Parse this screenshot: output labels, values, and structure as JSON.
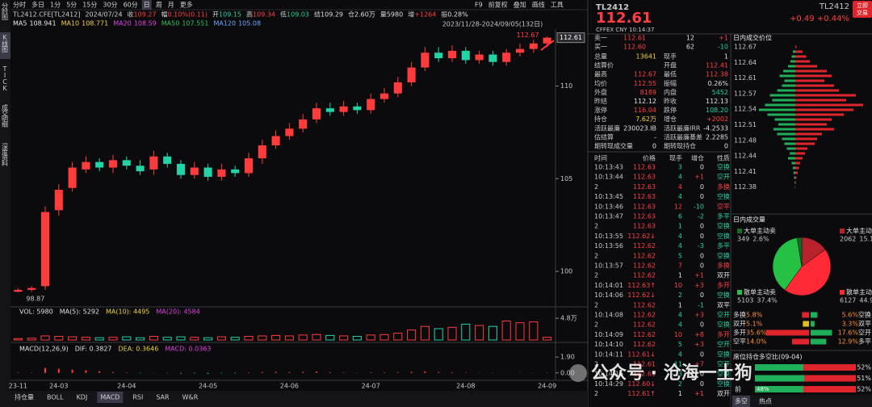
{
  "toolbar": {
    "tabs": [
      "分时",
      "多日",
      "1分",
      "5分",
      "15分",
      "30分",
      "60分",
      "日",
      "周",
      "月",
      "更多"
    ],
    "active": 7,
    "right": [
      "F9",
      "前复权",
      "叠加",
      "画线",
      "工具"
    ]
  },
  "side_tabs": {
    "items": [
      "分时图",
      "K线图",
      "TICK",
      "成交明细",
      "深度资料"
    ],
    "active": 1
  },
  "quote_line": [
    {
      "text": "TL2412.CFE[TL2412]",
      "color": "#d0d0d0"
    },
    {
      "text": "2024/07/24",
      "color": "#d0d0d0"
    },
    {
      "text": "收",
      "value": "109.27",
      "color": "#ff4040"
    },
    {
      "text": "幅",
      "value": "0.10%(0.11)",
      "color": "#ff4040"
    },
    {
      "text": "开",
      "value": "109.15",
      "color": "#23d3a5"
    },
    {
      "text": "高",
      "value": "109.34",
      "color": "#ff4040"
    },
    {
      "text": "低",
      "value": "109.03",
      "color": "#23d3a5"
    },
    {
      "text": "结",
      "value": "109.29",
      "color": "#e0e0e0"
    },
    {
      "text": "仓",
      "value": "2.60万",
      "color": "#e0e0e0"
    },
    {
      "text": "量",
      "value": "5980",
      "color": "#e0e0e0"
    },
    {
      "text": "增",
      "value": "+1264",
      "color": "#ff4040"
    },
    {
      "text": "振",
      "value": "0.28%",
      "color": "#e0e0e0"
    }
  ],
  "ma_line": [
    {
      "text": "MA5",
      "value": "108.941",
      "color": "#e8e8e8"
    },
    {
      "text": "MA10",
      "value": "108.771",
      "color": "#f0d040"
    },
    {
      "text": "MA20",
      "value": "108.59",
      "color": "#e040e0"
    },
    {
      "text": "MA50",
      "value": "107.551",
      "color": "#30c060"
    },
    {
      "text": "MA120",
      "value": "105.08",
      "color": "#6aa8ff"
    }
  ],
  "chart_data": {
    "type": "candlestick",
    "date_range": "2023/11/28-2024/09/05(132日)",
    "categories": [
      "23-11",
      null,
      null,
      "24-03",
      null,
      null,
      null,
      null,
      "24-04",
      null,
      null,
      null,
      null,
      null,
      "24-05",
      null,
      null,
      null,
      null,
      null,
      "24-06",
      null,
      null,
      null,
      null,
      null,
      "24-07",
      null,
      null,
      null,
      null,
      null,
      null,
      "24-08",
      null,
      null,
      null,
      null,
      null,
      "24-09"
    ],
    "open": [
      98.9,
      99.0,
      99.2,
      103.3,
      104.5,
      105.5,
      105.9,
      105.6,
      106.0,
      105.7,
      105.5,
      106.2,
      105.8,
      105.2,
      105.6,
      105.1,
      105.5,
      105.3,
      106.1,
      106.8,
      107.3,
      107.7,
      108.2,
      108.8,
      108.6,
      108.9,
      108.7,
      109.3,
      109.6,
      110.2,
      111.0,
      111.8,
      111.5,
      111.9,
      111.4,
      111.7,
      111.3,
      111.8,
      112.0,
      112.3
    ],
    "close": [
      99.0,
      99.1,
      103.2,
      104.4,
      105.6,
      105.9,
      105.6,
      106.0,
      105.7,
      105.4,
      106.2,
      105.8,
      105.2,
      105.6,
      105.1,
      105.5,
      105.3,
      106.1,
      106.8,
      107.3,
      107.7,
      108.2,
      108.8,
      108.6,
      108.9,
      108.7,
      109.3,
      109.6,
      110.2,
      111.0,
      111.8,
      111.5,
      111.9,
      111.4,
      111.7,
      111.3,
      111.8,
      112.0,
      112.3,
      112.61
    ],
    "high": [
      99.1,
      99.2,
      103.5,
      104.7,
      105.9,
      106.2,
      106.1,
      106.3,
      106.2,
      106.0,
      106.5,
      106.4,
      106.0,
      105.9,
      105.8,
      105.8,
      105.7,
      106.4,
      107.1,
      107.6,
      108.0,
      108.5,
      109.1,
      109.1,
      109.2,
      109.1,
      109.6,
      109.9,
      110.5,
      111.3,
      112.1,
      112.1,
      112.2,
      112.1,
      111.9,
      111.9,
      112.0,
      112.3,
      112.5,
      112.67
    ],
    "low": [
      98.87,
      98.9,
      99.0,
      103.0,
      104.3,
      105.3,
      105.4,
      105.3,
      105.5,
      105.2,
      105.2,
      105.6,
      105.0,
      105.0,
      104.9,
      104.9,
      105.1,
      105.1,
      105.8,
      106.6,
      107.1,
      107.5,
      108.0,
      108.4,
      108.4,
      108.5,
      108.5,
      109.1,
      109.4,
      110.0,
      110.8,
      111.3,
      111.3,
      111.2,
      111.2,
      111.1,
      111.1,
      111.6,
      111.8,
      112.1
    ],
    "up_color": "#ff3b3b",
    "down_color": "#23d3a5",
    "ylim": [
      98.3,
      112.9
    ],
    "yticks": [
      100,
      105,
      110
    ]
  },
  "volume": {
    "header": [
      {
        "text": "VOL: 5980",
        "color": "#e0e0e0"
      },
      {
        "text": "MA(5): 5292",
        "color": "#e0e0e0"
      },
      {
        "text": "MA(10): 4495",
        "color": "#f0d040"
      },
      {
        "text": "MA(20): 4584",
        "color": "#e040e0"
      }
    ],
    "values": [
      3000,
      4000,
      9000,
      8000,
      7000,
      6000,
      5000,
      6000,
      7000,
      5000,
      8000,
      6000,
      7000,
      6000,
      5000,
      7000,
      6000,
      8000,
      9000,
      10000,
      9000,
      11000,
      12000,
      10000,
      9000,
      8000,
      11000,
      12000,
      15000,
      22000,
      30000,
      25000,
      28000,
      35000,
      32000,
      30000,
      42000,
      38000,
      40000,
      5980
    ],
    "ylim": [
      0,
      50000
    ],
    "yticks": [
      {
        "value": 48000,
        "label": "4.8万"
      }
    ]
  },
  "macd": {
    "header": [
      {
        "text": "MACD(12,26,9)",
        "color": "#e0e0e0"
      },
      {
        "text": "DIF: 0.3827",
        "color": "#e0e0e0"
      },
      {
        "text": "DEA: 0.3646",
        "color": "#f0d040"
      },
      {
        "text": "MACD: 0.0363",
        "color": "#e040e0"
      }
    ],
    "values": [
      0.05,
      0.04,
      0.6,
      0.5,
      0.4,
      0.3,
      0.2,
      0.1,
      0.05,
      -0.05,
      0.02,
      -0.03,
      -0.08,
      -0.06,
      -0.1,
      -0.05,
      -0.06,
      0.05,
      0.1,
      0.12,
      0.1,
      0.12,
      0.15,
      0.08,
      0.05,
      0.02,
      0.06,
      0.05,
      0.08,
      0.12,
      0.18,
      0.1,
      0.08,
      0.05,
      0.03,
      -0.02,
      0.01,
      0.03,
      0.02,
      0.0363
    ],
    "ylim": [
      -0.8,
      2.4
    ],
    "yticks": [
      {
        "value": 1.9,
        "label": "1.90"
      },
      {
        "value": 0,
        "label": "0.00"
      }
    ]
  },
  "bottom_tabs": {
    "items": [
      "持仓量",
      "BOLL",
      "KDJ",
      "MACD",
      "RSI",
      "SAR",
      "W&R"
    ],
    "active": 3
  },
  "quote": {
    "code": "TL2412",
    "price": "112.61",
    "exchange": "CFFEX CNY 10:14:37",
    "code_right": "TL2412",
    "change": "+0.49 +0.44%",
    "button": [
      "立即",
      "交易"
    ]
  },
  "order_book": [
    [
      "卖一",
      "112.61",
      "12",
      "+1"
    ],
    [
      "买一",
      "112.60",
      "62",
      "-10"
    ]
  ],
  "stats": [
    [
      {
        "label": "总量",
        "value": "13641",
        "color": "#f0d040"
      },
      {
        "label": "现手",
        "value": "1",
        "color": "#e0e0e0"
      }
    ],
    [
      {
        "label": "结算价"
      },
      {
        "label": "开盘",
        "value": "112.41",
        "color": "#ff4040"
      }
    ],
    [
      {
        "label": "最高",
        "value": "112.67",
        "color": "#ff4040"
      },
      {
        "label": "最低",
        "value": "112.38",
        "color": "#ff4040"
      }
    ],
    [
      {
        "label": "均价",
        "value": "112.55",
        "color": "#ff4040"
      },
      {
        "label": "振幅",
        "value": "0.26%",
        "color": "#e0e0e0"
      }
    ],
    [
      {
        "label": "外盘",
        "value": "8189",
        "color": "#ff4040"
      },
      {
        "label": "内盘",
        "value": "5452",
        "color": "#23d3a5"
      }
    ],
    [
      {
        "label": "昨结",
        "value": "112.12",
        "color": "#e0e0e0"
      },
      {
        "label": "昨收",
        "value": "112.13",
        "color": "#e0e0e0"
      }
    ],
    [
      {
        "label": "涨停",
        "value": "116.04",
        "color": "#ff4040"
      },
      {
        "label": "跌停",
        "value": "108.20",
        "color": "#23d3a5"
      }
    ],
    [
      {
        "label": "持仓",
        "value": "7.62万",
        "color": "#f0d040"
      },
      {
        "label": "增仓",
        "value": "+2002",
        "color": "#ff4040"
      }
    ],
    [
      {
        "label": "活跃最廉",
        "value": "230023.IB",
        "color": "#e0e0e0"
      },
      {
        "label": "活跃最廉IRR",
        "value": "-4.2533",
        "color": "#e0e0e0"
      }
    ],
    [
      {
        "label": "估结算",
        "value": "-",
        "color": "#e0e0e0"
      },
      {
        "label": "活跃最廉基差",
        "value": "2.2285",
        "color": "#e0e0e0"
      }
    ],
    [
      {
        "label": "期转现成交量",
        "value": "0",
        "color": "#e0e0e0"
      },
      {
        "label": "期转现持仓",
        "value": "0",
        "color": "#e0e0e0"
      }
    ]
  ],
  "trades": {
    "header": [
      "时间",
      "价格",
      "现手",
      "增仓",
      "性质"
    ],
    "rows": [
      [
        "10:13:43",
        "112.63",
        "3",
        "0",
        "空换",
        "#23d3a5"
      ],
      [
        "10:13:44",
        "112.63",
        "4",
        "+1",
        "空开",
        "#23d3a5"
      ],
      [
        "2",
        "112.63",
        "4",
        "0",
        "多换",
        "#ff4040"
      ],
      [
        "10:13:45",
        "112.63",
        "4",
        "0",
        "空换",
        "#23d3a5"
      ],
      [
        "10:13:46",
        "112.63",
        "12",
        "-10",
        "空平",
        "#ff4040"
      ],
      [
        "10:13:47",
        "112.63",
        "6",
        "-2",
        "多平",
        "#23d3a5"
      ],
      [
        "2",
        "112.63",
        "1",
        "0",
        "空换",
        "#23d3a5"
      ],
      [
        "10:13:55",
        "112.62↓",
        "4",
        "0",
        "空换",
        "#23d3a5"
      ],
      [
        "10:13:56",
        "112.62",
        "4",
        "-3",
        "多平",
        "#23d3a5"
      ],
      [
        "2",
        "112.62",
        "5",
        "0",
        "空换",
        "#23d3a5"
      ],
      [
        "10:13:57",
        "112.62",
        "7",
        "0",
        "多换",
        "#ff4040"
      ],
      [
        "2",
        "112.62",
        "1",
        "+1",
        "双开",
        "#e0e0e0"
      ],
      [
        "10:14:01",
        "112.63↑",
        "10",
        "+3",
        "多开",
        "#ff4040"
      ],
      [
        "10:14:06",
        "112.62↓",
        "2",
        "0",
        "空换",
        "#23d3a5"
      ],
      [
        "2",
        "112.62",
        "1",
        "-1",
        "双平",
        "#e0e0e0"
      ],
      [
        "10:14:08",
        "112.62",
        "4",
        "+3",
        "空开",
        "#23d3a5"
      ],
      [
        "2",
        "112.62",
        "4",
        "0",
        "空换",
        "#23d3a5"
      ],
      [
        "10:14:09",
        "112.62",
        "10",
        "+8",
        "多开",
        "#ff4040"
      ],
      [
        "10:14:10",
        "112.62",
        "5",
        "+3",
        "空开",
        "#23d3a5"
      ],
      [
        "10:14:11",
        "112.61↓",
        "4",
        "0",
        "空换",
        "#23d3a5"
      ],
      [
        "2",
        "112.61",
        "11",
        "+7",
        "空开",
        "#23d3a5"
      ],
      [
        "10:14:16",
        "112.61",
        "3",
        "0",
        "空换",
        "#23d3a5"
      ],
      [
        "10:14:29",
        "112.60↓",
        "2",
        "0",
        "空换",
        "#23d3a5"
      ],
      [
        "2",
        "112.61↑",
        "1",
        "+1",
        "双开",
        "#e0e0e0"
      ]
    ]
  },
  "price_levels": {
    "title": "日内成交价位",
    "ticks": [
      "112.67",
      "112.64",
      "112.61",
      "112.57",
      "112.54",
      "112.51",
      "112.48",
      "112.44",
      "112.41",
      "112.38"
    ],
    "sell": [
      0,
      20,
      30,
      40,
      60,
      100,
      130,
      90,
      110,
      150,
      210,
      190,
      250,
      300,
      230,
      170,
      140,
      180,
      150,
      110,
      90,
      70,
      45,
      60,
      30,
      20,
      15,
      10,
      5,
      3
    ],
    "buy": [
      10,
      60,
      90,
      120,
      180,
      260,
      300,
      240,
      320,
      360,
      500,
      420,
      560,
      480,
      400,
      300,
      260,
      320,
      220,
      180,
      160,
      100,
      80,
      60,
      40,
      30,
      20,
      10,
      5,
      0
    ]
  },
  "intraday_volume": {
    "title": "日内成交量",
    "slices": [
      {
        "name": "大单主动买",
        "count": 2062,
        "value": 15.1,
        "value_label": "15.1%",
        "color": "#b8222a"
      },
      {
        "name": "散单主动买",
        "count": 6127,
        "value": 44.9,
        "value_label": "44.9%",
        "color": "#ff2a36"
      },
      {
        "name": "散单主动卖",
        "count": 5103,
        "value": 37.4,
        "value_label": "37.4%",
        "color": "#25c144"
      },
      {
        "name": "大单主动卖",
        "count": 349,
        "value": 2.6,
        "value_label": "2.6%",
        "color": "#0d6e2c"
      }
    ]
  },
  "ratios": [
    {
      "left": "多换",
      "lv": 5.8,
      "ll": "5.8%",
      "right": "空换",
      "rv": 5.6,
      "rl": "5.6%"
    },
    {
      "left": "双开",
      "lv": 5.1,
      "ll": "5.1%",
      "right": "双平",
      "rv": 3.3,
      "rl": "3.3%"
    },
    {
      "left": "多开",
      "lv": 35.6,
      "ll": "35.6%",
      "right": "空开",
      "rv": 17.6,
      "rl": "17.6%"
    },
    {
      "left": "空平",
      "lv": 14.0,
      "ll": "14.0%",
      "right": "多平",
      "rv": 12.9,
      "rl": "12.9%"
    }
  ],
  "seats": {
    "title": "席位持仓多空比(09-04)",
    "rows": [
      {
        "value": 52,
        "label": "52%"
      },
      {
        "value": 51,
        "label": "51%"
      },
      {
        "name": "前",
        "left": 48,
        "left_label": "48%",
        "value": 52,
        "label": "52%"
      }
    ]
  },
  "right_tabs": {
    "items": [
      "多空",
      "热点"
    ],
    "active": 0
  },
  "watermark": "公众号 · 沧海一土狗"
}
